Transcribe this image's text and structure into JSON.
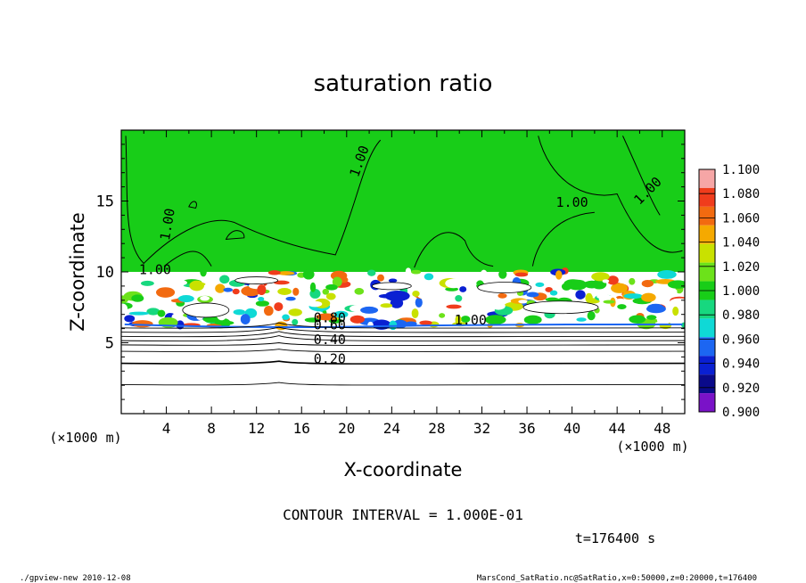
{
  "chart_data": {
    "type": "heatmap",
    "title": "saturation ratio",
    "xlabel": "X-coordinate",
    "ylabel": "Z-coordinate",
    "x_unit": "(×1000 m)",
    "y_unit": "(×1000 m)",
    "xlim": [
      0,
      50
    ],
    "ylim": [
      0,
      20
    ],
    "x_ticks": [
      "4",
      "8",
      "12",
      "16",
      "20",
      "24",
      "28",
      "32",
      "36",
      "40",
      "44",
      "48"
    ],
    "y_ticks": [
      "5",
      "10",
      "15"
    ],
    "contour_labels": [
      "1.00",
      "1.00",
      "1.00",
      "1.00",
      "1.00",
      "0.80",
      "0.60",
      "0.40",
      "0.20",
      "1.00"
    ],
    "contour_interval": "CONTOUR INTERVAL = 1.000E-01",
    "time_label": "t=176400 s",
    "colorbar": {
      "levels": [
        "1.100",
        "1.080",
        "1.060",
        "1.040",
        "1.020",
        "1.000",
        "0.980",
        "0.960",
        "0.940",
        "0.920",
        "0.900"
      ],
      "colors": [
        "#f6a6a6",
        "#f03c1c",
        "#f26a10",
        "#f5a900",
        "#c9e100",
        "#6ce21a",
        "#18cd18",
        "#17d87f",
        "#0fd9d6",
        "#1c66f2",
        "#0a20d2",
        "#0a0a8a",
        "#7a12c8"
      ]
    }
  },
  "footer": {
    "left": "./gpview-new  2010-12-08",
    "right": "MarsCond_SatRatio.nc@SatRatio,x=0:50000,z=0:20000,t=176400"
  }
}
